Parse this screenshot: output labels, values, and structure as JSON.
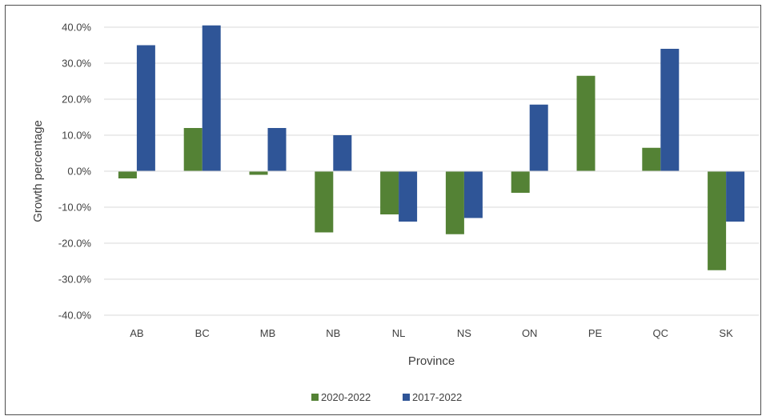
{
  "chart_data": {
    "type": "bar",
    "xlabel": "Province",
    "ylabel": "Growth percentage",
    "categories": [
      "AB",
      "BC",
      "MB",
      "NB",
      "NL",
      "NS",
      "ON",
      "PE",
      "QC",
      "SK"
    ],
    "series": [
      {
        "name": "2020-2022",
        "color": "#548235",
        "values": [
          -2.0,
          12.0,
          -1.0,
          -17.0,
          -12.0,
          -17.5,
          -6.0,
          26.5,
          6.5,
          -27.5
        ]
      },
      {
        "name": "2017-2022",
        "color": "#2f5597",
        "values": [
          35.0,
          40.5,
          12.0,
          10.0,
          -14.0,
          -13.0,
          18.5,
          0.0,
          34.0,
          -14.0
        ]
      }
    ],
    "ylim": [
      -40,
      40
    ],
    "yticks": [
      40,
      30,
      20,
      10,
      0,
      -10,
      -20,
      -30,
      -40
    ],
    "ytick_labels": [
      "40.0%",
      "30.0%",
      "20.0%",
      "10.0%",
      "0.0%",
      "-10.0%",
      "-20.0%",
      "-30.0%",
      "-40.0%"
    ],
    "grid": true,
    "gridline_color": "#d9d9d9",
    "legend_position": "bottom"
  }
}
